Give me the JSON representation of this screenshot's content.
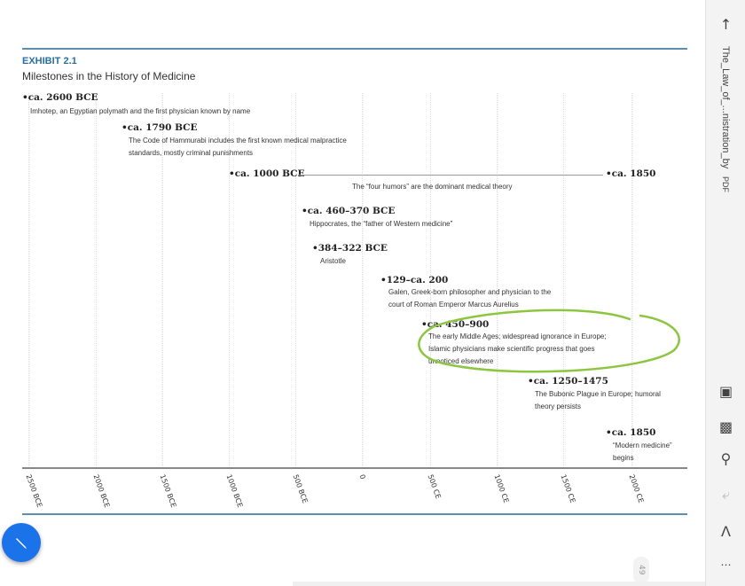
{
  "exhibit": {
    "label": "EXHIBIT 2.1",
    "title": "Milestones in the History of Medicine"
  },
  "timeline": {
    "axis_ticks": [
      "2500 BCE",
      "2000 BCE",
      "1500 BCE",
      "1000 BCE",
      "500 BCE",
      "0",
      "500 CE",
      "1000 CE",
      "1500 CE",
      "2000 CE"
    ],
    "events": [
      {
        "date": "ca. 2600 BCE",
        "desc": "Imhotep, an Egyptian polymath and the first physician known by name"
      },
      {
        "date": "ca. 1790 BCE",
        "desc": "The Code of Hammurabi includes the first known medical malpractice\nstandards, mostly criminal punishments"
      },
      {
        "date": "ca. 1000 BCE",
        "end": "ca. 1850",
        "desc": "The “four humors” are the dominant medical theory"
      },
      {
        "date": "ca. 460–370 BCE",
        "desc": "Hippocrates, the “father of Western medicine”"
      },
      {
        "date": "384–322 BCE",
        "desc": "Aristotle"
      },
      {
        "date": "129–ca. 200",
        "desc": "Galen, Greek-born philosopher and physician to the\ncourt of Roman Emperor Marcus Aurelius"
      },
      {
        "date": "ca. 450–900",
        "desc": "The early Middle Ages; widespread ignorance in Europe;\nIslamic physicians make scientific progress that goes\nunnoticed elsewhere"
      },
      {
        "date": "ca. 1250–1475",
        "desc": "The Bubonic Plague in Europe; humoral\ntheory persists"
      },
      {
        "date": "ca. 1850",
        "desc": "“Modern medicine”\nbegins"
      }
    ]
  },
  "viewer": {
    "filename": "The_Law_of_...nistration_by",
    "file_type": "PDF",
    "page_number": "49",
    "annotation_color": "#8cc63f",
    "accent": "#1a73e8",
    "icons": [
      "back-arrow-icon",
      "reading-mode-icon",
      "page-layout-icon",
      "find-icon",
      "share-icon",
      "read-aloud-icon",
      "more-icon",
      "pen-icon"
    ]
  }
}
